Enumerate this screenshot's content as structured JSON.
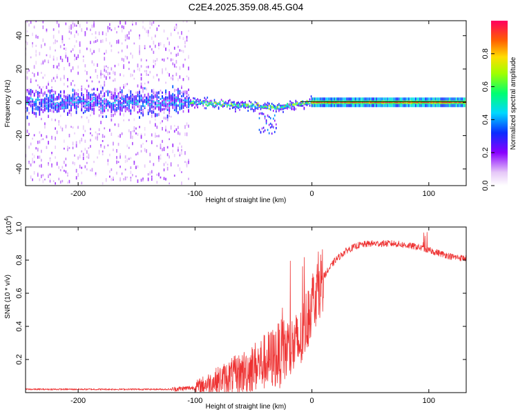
{
  "title": "C2E4.2025.359.08.45.G04",
  "chart_data": [
    {
      "type": "heatmap",
      "name": "spectrogram",
      "xlabel": "Height of straight line (km)",
      "ylabel": "Frequency (Hz)",
      "xlim": [
        -245,
        132
      ],
      "ylim": [
        -50,
        49
      ],
      "xticks": [
        -200,
        -100,
        0,
        100
      ],
      "xtick_labels": [
        "-200",
        "-100",
        "0",
        "100"
      ],
      "yticks": [
        -40,
        -20,
        0,
        20,
        40
      ],
      "ytick_labels": [
        "-40",
        "-20",
        "0",
        "20",
        "40"
      ],
      "colorbar": {
        "label": "Normalized spectral amplitude",
        "range": [
          0,
          1
        ],
        "ticks": [
          0.0,
          0.2,
          0.4,
          0.6,
          0.8
        ],
        "tick_labels": [
          "0.0",
          "0.2",
          "0.4",
          "0.6",
          "0.8"
        ]
      },
      "description_regions": [
        {
          "x_range": [
            -245,
            -105
          ],
          "freq_spread_hz": 48,
          "core_band_hz": 10,
          "amplitude": "low-medium"
        },
        {
          "x_range": [
            -105,
            0
          ],
          "freq_spread_hz": 8,
          "center_trend": "0 to -3",
          "amplitude": "medium"
        },
        {
          "x_range": [
            0,
            132
          ],
          "freq_spread_hz": 3,
          "center_hz": 0,
          "amplitude": "high"
        }
      ]
    },
    {
      "type": "line",
      "name": "snr",
      "xlabel": "Height of straight line (km)",
      "ylabel": "SNR (10 * v/v)",
      "scale_label": "(x10",
      "scale_exponent": "4",
      "color": "#ee3333",
      "xlim": [
        -245,
        132
      ],
      "ylim": [
        0,
        1.0
      ],
      "xticks": [
        -200,
        -100,
        0,
        100
      ],
      "xtick_labels": [
        "-200",
        "-100",
        "0",
        "100"
      ],
      "yticks": [
        0.2,
        0.4,
        0.6,
        0.8,
        1.0
      ],
      "ytick_labels": [
        "0.2",
        "0.4",
        "0.6",
        "0.8",
        "1.0"
      ],
      "trend": {
        "x": [
          -245,
          -120,
          -100,
          -60,
          -30,
          -10,
          0,
          10,
          20,
          30,
          40,
          50,
          60,
          70,
          80,
          90,
          100,
          110,
          120,
          132
        ],
        "y": [
          0.02,
          0.02,
          0.03,
          0.12,
          0.22,
          0.3,
          0.55,
          0.7,
          0.8,
          0.86,
          0.89,
          0.9,
          0.9,
          0.9,
          0.89,
          0.88,
          0.86,
          0.84,
          0.82,
          0.81
        ]
      }
    }
  ]
}
